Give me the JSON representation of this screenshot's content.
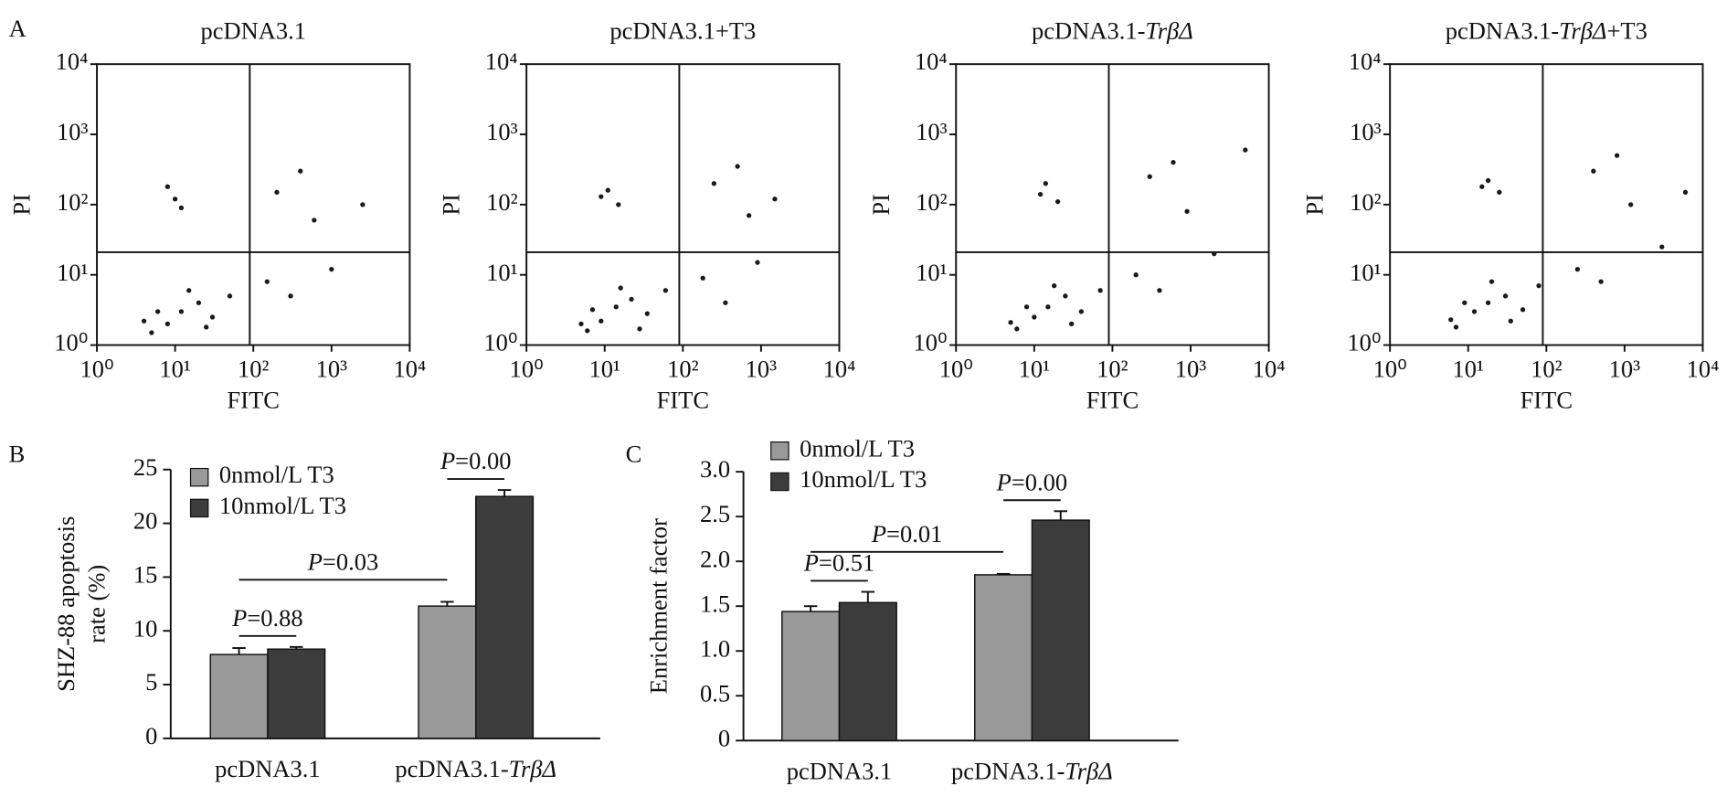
{
  "chart_data": [
    {
      "type": "scatter",
      "panel_label": "A",
      "title": [
        {
          "text": "pcDNA3.1"
        }
      ],
      "x_label": "FITC",
      "y_label": "PI",
      "log_x": true,
      "log_y": true,
      "xlim": [
        1,
        10000
      ],
      "ylim": [
        1,
        10000
      ],
      "xticks": [
        {
          "value": 1,
          "label": "10⁰"
        },
        {
          "value": 10,
          "label": "10¹"
        },
        {
          "value": 100,
          "label": "10²"
        },
        {
          "value": 1000,
          "label": "10³"
        },
        {
          "value": 10000,
          "label": "10⁴"
        }
      ],
      "yticks": [
        {
          "value": 1,
          "label": "10⁰"
        },
        {
          "value": 10,
          "label": "10¹"
        },
        {
          "value": 100,
          "label": "10²"
        },
        {
          "value": 1000,
          "label": "10³"
        },
        {
          "value": 10000,
          "label": "10⁴"
        }
      ],
      "quadrant_x": 90,
      "quadrant_y": 21,
      "color": "#1a1a1a",
      "x": [
        8,
        12,
        5,
        20,
        30,
        15,
        4,
        50,
        10,
        8,
        12,
        150,
        300,
        200,
        600,
        1000,
        400,
        2500,
        6,
        25
      ],
      "y": [
        2,
        3,
        1.5,
        4,
        2.5,
        6,
        2.2,
        5,
        120,
        180,
        90,
        8,
        5,
        150,
        60,
        12,
        300,
        100,
        3,
        1.8
      ]
    },
    {
      "type": "scatter",
      "title": [
        {
          "text": "pcDNA3.1+T3"
        }
      ],
      "x_label": "FITC",
      "y_label": "PI",
      "log_x": true,
      "log_y": true,
      "xlim": [
        1,
        10000
      ],
      "ylim": [
        1,
        10000
      ],
      "xticks": [
        {
          "value": 1,
          "label": "10⁰"
        },
        {
          "value": 10,
          "label": "10¹"
        },
        {
          "value": 100,
          "label": "10²"
        },
        {
          "value": 1000,
          "label": "10³"
        },
        {
          "value": 10000,
          "label": "10⁴"
        }
      ],
      "yticks": [
        {
          "value": 1,
          "label": "10⁰"
        },
        {
          "value": 10,
          "label": "10¹"
        },
        {
          "value": 100,
          "label": "10²"
        },
        {
          "value": 1000,
          "label": "10³"
        },
        {
          "value": 10000,
          "label": "10⁴"
        }
      ],
      "quadrant_x": 90,
      "quadrant_y": 21,
      "color": "#1a1a1a",
      "x": [
        9,
        14,
        6,
        22,
        35,
        16,
        5,
        60,
        9,
        11,
        15,
        180,
        350,
        250,
        700,
        900,
        500,
        1500,
        7,
        28
      ],
      "y": [
        2.2,
        3.5,
        1.6,
        4.5,
        2.8,
        6.5,
        2,
        6,
        130,
        160,
        100,
        9,
        4,
        200,
        70,
        15,
        350,
        120,
        3.2,
        1.7
      ]
    },
    {
      "type": "scatter",
      "title": [
        {
          "text": "pcDNA3.1-"
        },
        {
          "text": "TrβΔ",
          "italic": true
        }
      ],
      "x_label": "FITC",
      "y_label": "PI",
      "log_x": true,
      "log_y": true,
      "xlim": [
        1,
        10000
      ],
      "ylim": [
        1,
        10000
      ],
      "xticks": [
        {
          "value": 1,
          "label": "10⁰"
        },
        {
          "value": 10,
          "label": "10¹"
        },
        {
          "value": 100,
          "label": "10²"
        },
        {
          "value": 1000,
          "label": "10³"
        },
        {
          "value": 10000,
          "label": "10⁴"
        }
      ],
      "yticks": [
        {
          "value": 1,
          "label": "10⁰"
        },
        {
          "value": 10,
          "label": "10¹"
        },
        {
          "value": 100,
          "label": "10²"
        },
        {
          "value": 1000,
          "label": "10³"
        },
        {
          "value": 10000,
          "label": "10⁴"
        }
      ],
      "quadrant_x": 90,
      "quadrant_y": 21,
      "color": "#1a1a1a",
      "x": [
        10,
        15,
        6,
        25,
        40,
        18,
        5,
        70,
        12,
        14,
        20,
        200,
        400,
        300,
        900,
        2000,
        600,
        5000,
        8,
        30
      ],
      "y": [
        2.5,
        3.5,
        1.7,
        5,
        3,
        7,
        2.1,
        6,
        140,
        200,
        110,
        10,
        6,
        250,
        80,
        20,
        400,
        600,
        3.5,
        2
      ]
    },
    {
      "type": "scatter",
      "title": [
        {
          "text": "pcDNA3.1-"
        },
        {
          "text": "TrβΔ",
          "italic": true
        },
        {
          "text": "+T3"
        }
      ],
      "x_label": "FITC",
      "y_label": "PI",
      "log_x": true,
      "log_y": true,
      "xlim": [
        1,
        10000
      ],
      "ylim": [
        1,
        10000
      ],
      "xticks": [
        {
          "value": 1,
          "label": "10⁰"
        },
        {
          "value": 10,
          "label": "10¹"
        },
        {
          "value": 100,
          "label": "10²"
        },
        {
          "value": 1000,
          "label": "10³"
        },
        {
          "value": 10000,
          "label": "10⁴"
        }
      ],
      "yticks": [
        {
          "value": 1,
          "label": "10⁰"
        },
        {
          "value": 10,
          "label": "10¹"
        },
        {
          "value": 100,
          "label": "10²"
        },
        {
          "value": 1000,
          "label": "10³"
        },
        {
          "value": 10000,
          "label": "10⁴"
        }
      ],
      "quadrant_x": 90,
      "quadrant_y": 21,
      "color": "#1a1a1a",
      "x": [
        12,
        18,
        7,
        30,
        50,
        20,
        6,
        80,
        15,
        18,
        25,
        250,
        500,
        400,
        1200,
        3000,
        800,
        6000,
        9,
        35
      ],
      "y": [
        3,
        4,
        1.8,
        5,
        3.2,
        8,
        2.3,
        7,
        180,
        220,
        150,
        12,
        8,
        300,
        100,
        25,
        500,
        150,
        4,
        2.2
      ]
    },
    {
      "type": "bar",
      "panel_label": "B",
      "y_label": [
        "SHZ-88 apoptosis",
        "rate (%)"
      ],
      "categories": [
        [
          {
            "text": "pcDNA3.1"
          }
        ],
        [
          {
            "text": "pcDNA3.1-"
          },
          {
            "text": "TrβΔ",
            "italic": true
          }
        ]
      ],
      "series": [
        {
          "name": "0nmol/L T3",
          "color": "#999999",
          "values": [
            7.8,
            12.3
          ],
          "errors": [
            0.6,
            0.4
          ]
        },
        {
          "name": "10nmol/L T3",
          "color": "#3c3c3c",
          "values": [
            8.3,
            22.5
          ],
          "errors": [
            0.2,
            0.6
          ]
        }
      ],
      "ylim": [
        0,
        25
      ],
      "yticks": [
        0,
        5,
        10,
        15,
        20,
        25
      ],
      "annotations": [
        {
          "label": [
            {
              "text": "P",
              "italic": true
            },
            {
              "text": "=0.88"
            }
          ],
          "group": 0
        },
        {
          "label": [
            {
              "text": "P",
              "italic": true
            },
            {
              "text": "=0.00"
            }
          ],
          "group": 1
        },
        {
          "label": [
            {
              "text": "P",
              "italic": true
            },
            {
              "text": "=0.03"
            }
          ],
          "groups": [
            0,
            1
          ]
        }
      ]
    },
    {
      "type": "bar",
      "panel_label": "C",
      "y_label": [
        "Enrichment factor"
      ],
      "categories": [
        [
          {
            "text": "pcDNA3.1"
          }
        ],
        [
          {
            "text": "pcDNA3.1-"
          },
          {
            "text": "TrβΔ",
            "italic": true
          }
        ]
      ],
      "series": [
        {
          "name": "0nmol/L T3",
          "color": "#999999",
          "values": [
            1.44,
            1.85
          ],
          "errors": [
            0.06,
            0.01
          ]
        },
        {
          "name": "10nmol/L T3",
          "color": "#3c3c3c",
          "values": [
            1.54,
            2.46
          ],
          "errors": [
            0.12,
            0.1
          ]
        }
      ],
      "ylim": [
        0,
        3
      ],
      "yticks": [
        0,
        0.5,
        {
          "value": 1,
          "label": "1.0"
        },
        1.5,
        {
          "value": 2,
          "label": "2.0"
        },
        2.5,
        {
          "value": 3,
          "label": "3.0"
        }
      ],
      "annotations": [
        {
          "label": [
            {
              "text": "P",
              "italic": true
            },
            {
              "text": "=0.51"
            }
          ],
          "group": 0
        },
        {
          "label": [
            {
              "text": "P",
              "italic": true
            },
            {
              "text": "=0.00"
            }
          ],
          "group": 1
        },
        {
          "label": [
            {
              "text": "P",
              "italic": true
            },
            {
              "text": "=0.01"
            }
          ],
          "groups": [
            0,
            1
          ]
        }
      ]
    }
  ]
}
